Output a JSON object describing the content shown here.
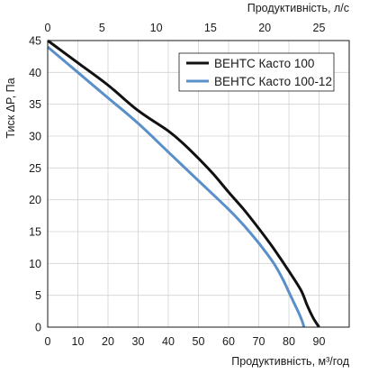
{
  "chart_data": {
    "type": "line",
    "title": "",
    "xlabel": "Продуктивність, м³/год",
    "x2label": "Продуктивність, л/с",
    "ylabel": "Тиск ΔP, Па",
    "xlim": [
      0,
      100
    ],
    "x2lim": [
      0,
      27.78
    ],
    "ylim": [
      0,
      45
    ],
    "xticks": [
      0,
      10,
      20,
      30,
      40,
      50,
      60,
      70,
      80,
      90
    ],
    "x2ticks": [
      0,
      5,
      10,
      15,
      20,
      25
    ],
    "yticks": [
      0,
      5,
      10,
      15,
      20,
      25,
      30,
      35,
      40,
      45
    ],
    "grid": true,
    "legend_position": "top-right",
    "series": [
      {
        "name": "ВЕНТС Касто 100",
        "color": "#111111",
        "x": [
          0,
          10,
          20,
          30,
          40,
          45,
          50,
          55,
          60,
          65,
          70,
          75,
          80,
          84,
          86,
          88,
          90
        ],
        "y": [
          45,
          41.5,
          38,
          34,
          30.8,
          28.8,
          26.5,
          24,
          21.2,
          18.5,
          15.5,
          12.3,
          8.8,
          5.8,
          3.5,
          1.5,
          0
        ]
      },
      {
        "name": "ВЕНТС Касто 100-12",
        "color": "#5b8fc9",
        "x": [
          0,
          10,
          20,
          30,
          40,
          50,
          60,
          65,
          70,
          75,
          78,
          80,
          82,
          83.5,
          84.5,
          85
        ],
        "y": [
          44,
          40,
          36,
          32,
          27.5,
          23,
          18.5,
          16,
          13.2,
          10,
          7.5,
          5.5,
          3.5,
          2,
          0.8,
          0
        ]
      }
    ]
  }
}
